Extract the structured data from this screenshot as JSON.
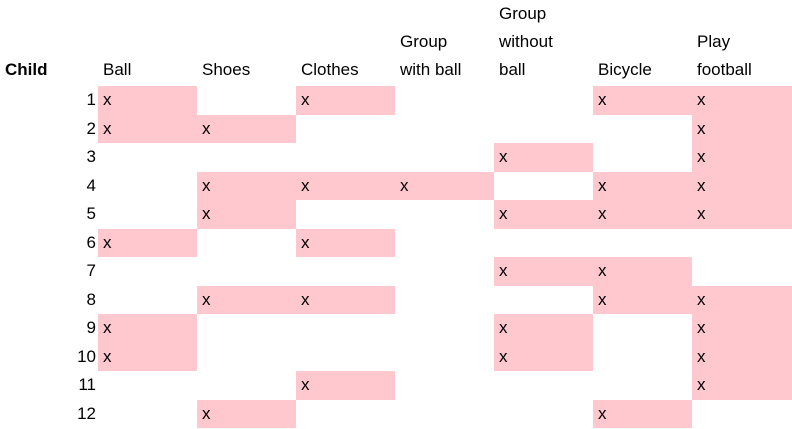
{
  "table": {
    "row_header": "Child",
    "columns": [
      {
        "key": "ball",
        "lines": [
          "Ball"
        ]
      },
      {
        "key": "shoes",
        "lines": [
          "Shoes"
        ]
      },
      {
        "key": "clothes",
        "lines": [
          "Clothes"
        ]
      },
      {
        "key": "group_with_ball",
        "lines": [
          "Group",
          "with ball"
        ]
      },
      {
        "key": "group_without_ball",
        "lines": [
          "Group",
          "without",
          "ball"
        ]
      },
      {
        "key": "bicycle",
        "lines": [
          "Bicycle"
        ]
      },
      {
        "key": "play_football",
        "lines": [
          "Play",
          "football"
        ]
      }
    ],
    "mark": "x",
    "highlight_color": "#ffc7ce",
    "rows": [
      {
        "child": "1",
        "marks": [
          1,
          0,
          1,
          0,
          0,
          1,
          1
        ]
      },
      {
        "child": "2",
        "marks": [
          1,
          1,
          0,
          0,
          0,
          0,
          1
        ]
      },
      {
        "child": "3",
        "marks": [
          0,
          0,
          0,
          0,
          1,
          0,
          1
        ]
      },
      {
        "child": "4",
        "marks": [
          0,
          1,
          1,
          1,
          0,
          1,
          1
        ]
      },
      {
        "child": "5",
        "marks": [
          0,
          1,
          0,
          0,
          1,
          1,
          1
        ]
      },
      {
        "child": "6",
        "marks": [
          1,
          0,
          1,
          0,
          0,
          0,
          0
        ]
      },
      {
        "child": "7",
        "marks": [
          0,
          0,
          0,
          0,
          1,
          1,
          0
        ]
      },
      {
        "child": "8",
        "marks": [
          0,
          1,
          1,
          0,
          0,
          1,
          1
        ]
      },
      {
        "child": "9",
        "marks": [
          1,
          0,
          0,
          0,
          1,
          0,
          1
        ]
      },
      {
        "child": "10",
        "marks": [
          1,
          0,
          0,
          0,
          1,
          0,
          1
        ]
      },
      {
        "child": "11",
        "marks": [
          0,
          0,
          1,
          0,
          0,
          0,
          1
        ]
      },
      {
        "child": "12",
        "marks": [
          0,
          1,
          0,
          0,
          0,
          1,
          0
        ]
      }
    ]
  },
  "chart_data": {
    "type": "table",
    "row_header": "Child",
    "columns": [
      "Ball",
      "Shoes",
      "Clothes",
      "Group with ball",
      "Group without ball",
      "Bicycle",
      "Play football"
    ]
  }
}
